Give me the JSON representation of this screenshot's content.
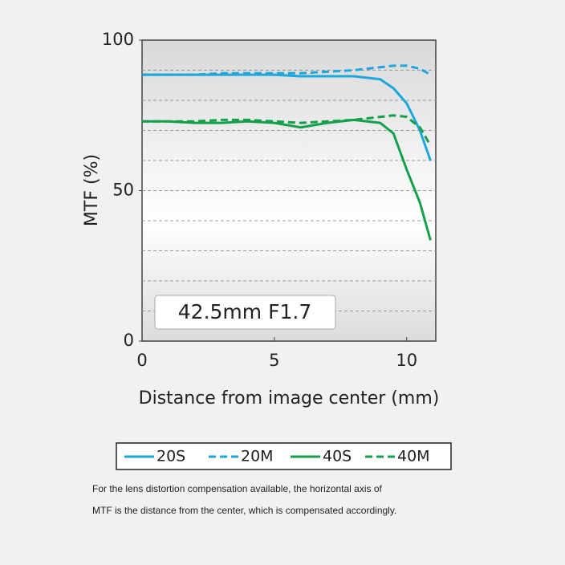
{
  "chart_data": {
    "type": "line",
    "annotation": "42.5mm F1.7",
    "x_label": "Distance from image center (mm)",
    "y_label": "MTF (%)",
    "x": [
      0,
      1,
      2,
      3,
      4,
      5,
      6,
      7,
      8,
      9,
      9.5,
      10,
      10.5,
      10.9
    ],
    "series": [
      {
        "name": "20S",
        "color": "#1ea7dc",
        "dashed": false,
        "values": [
          88.5,
          88.5,
          88.5,
          88.5,
          88.5,
          88.5,
          88,
          88,
          88,
          87,
          84,
          79,
          70,
          60
        ]
      },
      {
        "name": "20M",
        "color": "#1ea7dc",
        "dashed": true,
        "values": [
          88.5,
          88.5,
          88.5,
          89,
          89,
          89,
          89,
          89.5,
          90,
          91,
          91.5,
          91.5,
          90.5,
          88.5
        ]
      },
      {
        "name": "40S",
        "color": "#14a04a",
        "dashed": false,
        "values": [
          73,
          73,
          72.5,
          72.5,
          73,
          72.5,
          71,
          72.5,
          73.5,
          72.5,
          69,
          57,
          46,
          33.5
        ]
      },
      {
        "name": "40M",
        "color": "#14a04a",
        "dashed": true,
        "values": [
          73,
          73,
          73,
          73.5,
          73.5,
          73,
          72.5,
          73,
          73.5,
          74.5,
          75,
          74.5,
          71,
          65
        ]
      }
    ],
    "xlim": [
      0,
      11.1
    ],
    "xticks": [
      0,
      5,
      10
    ],
    "ylim": [
      0,
      100
    ],
    "yticks": [
      0,
      50,
      100
    ],
    "grid_lines": [
      10,
      20,
      30,
      40,
      50,
      60,
      70,
      80,
      90
    ],
    "footnote": [
      "For the lens distortion compensation available, the horizontal axis of",
      "MTF is the distance from the center, which is compensated accordingly."
    ]
  }
}
